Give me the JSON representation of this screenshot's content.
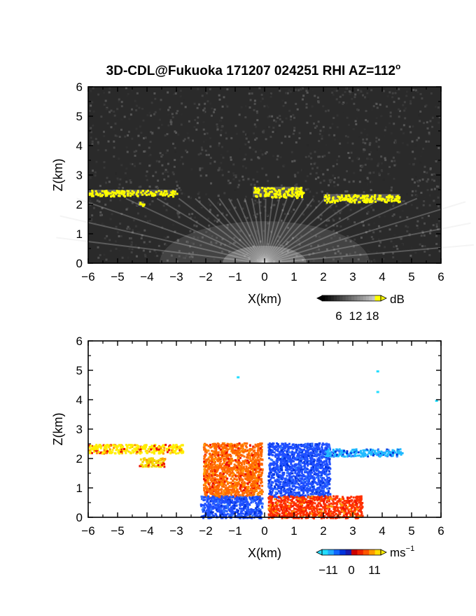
{
  "title": "3D-CDL@Fukuoka 171207 024251 RHI AZ=112",
  "title_superscript": "o",
  "chart_data": [
    {
      "type": "heatmap",
      "quantity": "reflectivity",
      "xlabel": "X(km)",
      "ylabel": "Z(km)",
      "xlim": [
        -6,
        6
      ],
      "ylim": [
        0,
        6
      ],
      "xticks": [
        "-6",
        "-5",
        "-4",
        "-3",
        "-2",
        "-1",
        "0",
        "1",
        "2",
        "3",
        "4",
        "5",
        "6"
      ],
      "yticks": [
        "0",
        "1",
        "2",
        "3",
        "4",
        "5",
        "6"
      ],
      "background_color": "#2a2a2a",
      "colorbar": {
        "unit": "dB",
        "ticks": [
          "6",
          "12",
          "18"
        ],
        "range": [
          0,
          21
        ],
        "palette": "grayscale-to-yellow"
      },
      "layers": [
        {
          "name": "cloud-west",
          "x": [
            -6.0,
            -3.0
          ],
          "z": [
            2.3,
            2.5
          ],
          "level_dB": 20,
          "color": "#ffff00"
        },
        {
          "name": "cloud-center",
          "x": [
            -0.4,
            1.3
          ],
          "z": [
            2.25,
            2.6
          ],
          "level_dB": 20,
          "color": "#ffff00"
        },
        {
          "name": "cloud-east",
          "x": [
            2.0,
            4.6
          ],
          "z": [
            2.1,
            2.35
          ],
          "level_dB": 20,
          "color": "#ffff00"
        },
        {
          "name": "patch-west-lower",
          "x": [
            -4.3,
            -4.1
          ],
          "z": [
            1.95,
            2.1
          ],
          "level_dB": 18,
          "color": "#ffff00"
        }
      ],
      "near_ground_fan": {
        "x_center": 0,
        "z_top": 2.2,
        "level_dB": 10
      }
    },
    {
      "type": "heatmap",
      "quantity": "doppler-velocity",
      "xlabel": "X(km)",
      "ylabel": "Z(km)",
      "xlim": [
        -6,
        6
      ],
      "ylim": [
        0,
        6
      ],
      "xticks": [
        "-6",
        "-5",
        "-4",
        "-3",
        "-2",
        "-1",
        "0",
        "1",
        "2",
        "3",
        "4",
        "5",
        "6"
      ],
      "yticks": [
        "0",
        "1",
        "2",
        "3",
        "4",
        "5",
        "6"
      ],
      "background_color": "#ffffff",
      "colorbar": {
        "unit": "ms",
        "unit_exponent": "-1",
        "ticks": [
          "-11",
          "0",
          "11"
        ],
        "range": [
          -14,
          14
        ],
        "palette": "cyan-blue-red-yellow"
      },
      "regions": [
        {
          "name": "west-layer",
          "x": [
            -6.0,
            -2.8
          ],
          "z": [
            2.2,
            2.5
          ],
          "velocity": 12,
          "color": "#ffee00"
        },
        {
          "name": "west-lower-patch",
          "x": [
            -4.3,
            -3.4
          ],
          "z": [
            1.75,
            2.05
          ],
          "velocity": 11,
          "color": "#f5d800"
        },
        {
          "name": "upper-west-sector",
          "x": [
            -2.1,
            -0.1
          ],
          "z": [
            0.7,
            2.55
          ],
          "velocity": 6,
          "color": "#ff6a00"
        },
        {
          "name": "upper-east-sector",
          "x": [
            0.1,
            2.2
          ],
          "z": [
            0.7,
            2.55
          ],
          "velocity": -6,
          "color": "#1f4fff"
        },
        {
          "name": "lower-west-sector",
          "x": [
            -2.2,
            -0.1
          ],
          "z": [
            0.0,
            0.75
          ],
          "velocity": -6,
          "color": "#1f4fff"
        },
        {
          "name": "lower-east-sector",
          "x": [
            0.1,
            3.3
          ],
          "z": [
            0.0,
            0.75
          ],
          "velocity": 6,
          "color": "#ff3000"
        },
        {
          "name": "east-layer",
          "x": [
            2.0,
            4.7
          ],
          "z": [
            2.1,
            2.35
          ],
          "velocity": -10,
          "color": "#22bbff"
        }
      ],
      "isolated_points": [
        {
          "x": -0.9,
          "z": 4.75,
          "velocity": -11,
          "color": "#22ddff"
        },
        {
          "x": 3.85,
          "z": 4.95,
          "velocity": -11,
          "color": "#22ddff"
        },
        {
          "x": 3.85,
          "z": 4.25,
          "velocity": -11,
          "color": "#22ddff"
        },
        {
          "x": 5.85,
          "z": 3.95,
          "velocity": -11,
          "color": "#22ddff"
        }
      ]
    }
  ]
}
